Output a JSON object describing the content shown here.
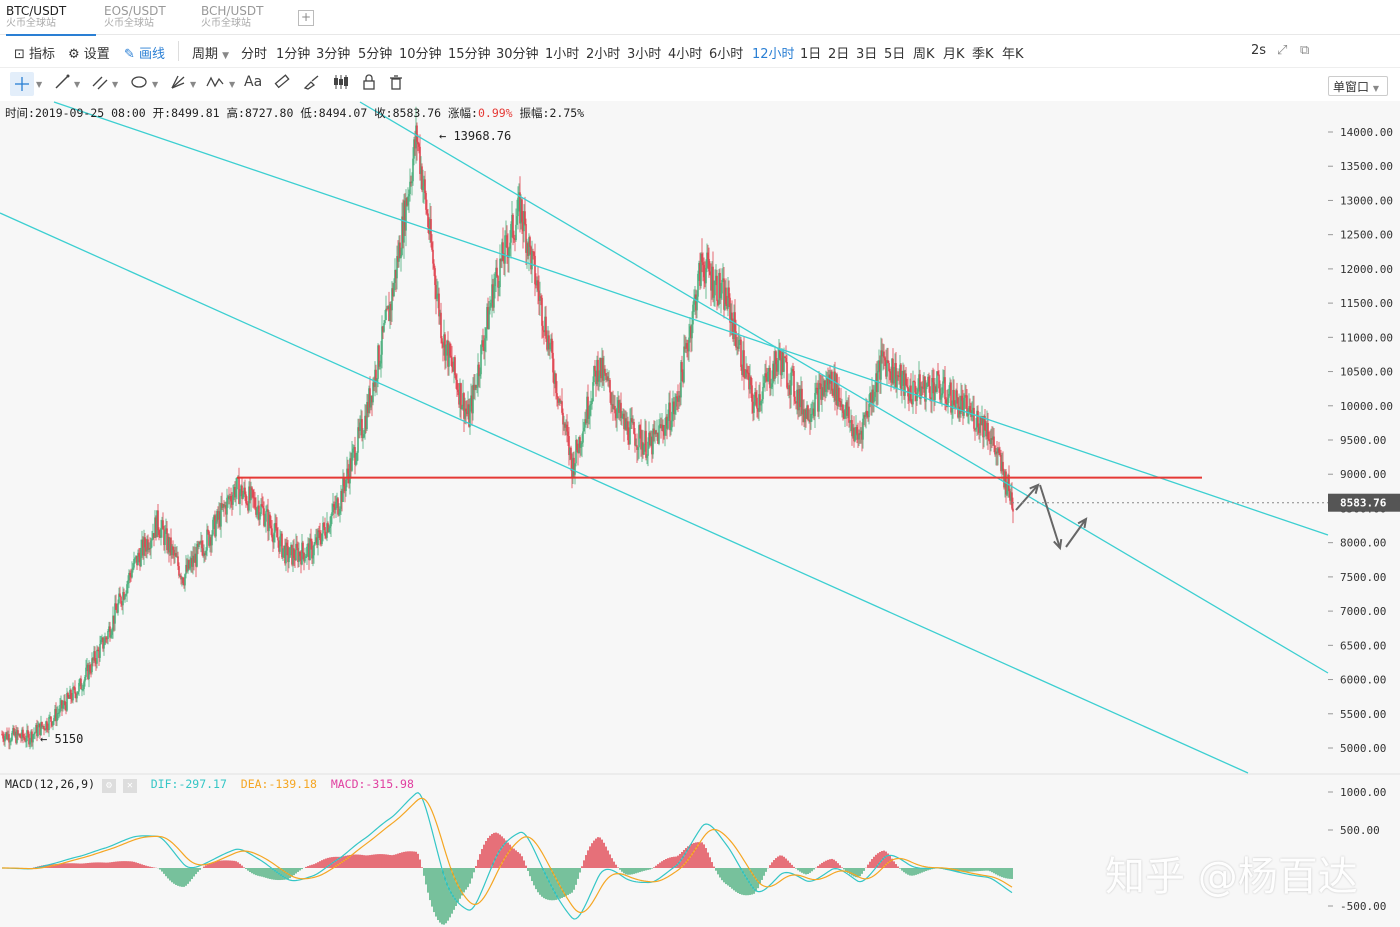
{
  "tabs": [
    {
      "pair": "BTC/USDT",
      "exchange": "火币全球站",
      "active": true
    },
    {
      "pair": "EOS/USDT",
      "exchange": "火币全球站",
      "active": false
    },
    {
      "pair": "BCH/USDT",
      "exchange": "火币全球站",
      "active": false
    }
  ],
  "toolbar": {
    "indicator": "指标",
    "settings": "设置",
    "draw": "画线",
    "period": "周期",
    "periods": [
      "分时",
      "1分钟",
      "3分钟",
      "5分钟",
      "10分钟",
      "15分钟",
      "30分钟",
      "1小时",
      "2小时",
      "3小时",
      "4小时",
      "6小时",
      "12小时",
      "1日",
      "2日",
      "3日",
      "5日",
      "周K",
      "月K",
      "季K",
      "年K"
    ],
    "active_period": "12小时",
    "refresh": "2s",
    "window_mode": "单窗口"
  },
  "drawing_tools": [
    "crosshair-icon",
    "line-icon",
    "parallel-channel-icon",
    "circle-icon",
    "fork-icon",
    "wave-icon",
    "text-icon",
    "ruler-icon",
    "brush-icon",
    "candle-icon",
    "lock-icon",
    "trash-icon"
  ],
  "drawing_text_tool": "Aa",
  "info": {
    "time_label": "时间:",
    "time": "2019-09-25 08:00",
    "open_label": "开:",
    "open": "8499.81",
    "high_label": "高:",
    "high": "8727.80",
    "low_label": "低:",
    "low": "8494.07",
    "close_label": "收:",
    "close": "8583.76",
    "change_label": "涨幅:",
    "change": "0.99%",
    "amplitude_label": "振幅:",
    "amplitude": "2.75%"
  },
  "macd": {
    "label": "MACD(12,26,9)",
    "dif": "DIF:-297.17",
    "dea": "DEA:-139.18",
    "macd": "MACD:-315.98",
    "colors": {
      "dif": "#34c6c6",
      "dea": "#f5a623",
      "macd": "#e040a0"
    }
  },
  "watermark": "知乎 @杨百达",
  "chart_data": {
    "type": "candlestick",
    "title": "",
    "price_axis_ticks": [
      "14000.00",
      "13500.00",
      "13000.00",
      "12500.00",
      "12000.00",
      "11500.00",
      "11000.00",
      "10500.00",
      "10000.00",
      "9500.00",
      "9000.00",
      "8500.00",
      "8000.00",
      "7500.00",
      "7000.00",
      "6500.00",
      "6000.00",
      "5500.00",
      "5000.00"
    ],
    "price_ylim": [
      4700,
      14400
    ],
    "last_price": "8583.76",
    "high_annotation": "13968.76",
    "low_annotation": "5150",
    "colors": {
      "up": "#4caf7d",
      "down": "#e0434f",
      "channel": "#3ccfd1",
      "support": "#e53935",
      "arrow": "#666666"
    },
    "price_path": [
      5200,
      5150,
      5450,
      5900,
      6600,
      7600,
      8300,
      7500,
      8100,
      8800,
      8500,
      7800,
      7900,
      8600,
      9800,
      11500,
      13968,
      11000,
      9800,
      11800,
      12900,
      11100,
      9100,
      10600,
      9700,
      9400,
      10000,
      12100,
      11500,
      10000,
      10700,
      9900,
      10400,
      9500,
      10700,
      10200,
      10300,
      10000,
      9700,
      8583
    ],
    "support_level": 8950,
    "macd_axis_ticks": [
      "1000.00",
      "500.00",
      "-500.00"
    ],
    "macd_ylim": [
      -700,
      1100
    ]
  }
}
